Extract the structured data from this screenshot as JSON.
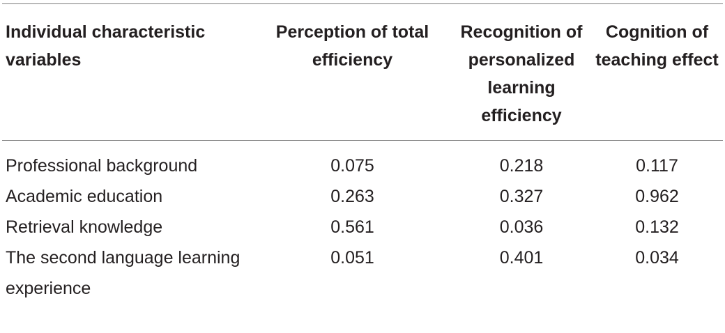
{
  "table": {
    "headers": [
      "Individual characteristic variables",
      "Perception of total efficiency",
      "Recognition of personalized learning efficiency",
      "Cognition of teaching effect"
    ],
    "rows": [
      [
        "Professional background",
        "0.075",
        "0.218",
        "0.117"
      ],
      [
        "Academic education",
        "0.263",
        "0.327",
        "0.962"
      ],
      [
        "Retrieval knowledge",
        "0.561",
        "0.036",
        "0.132"
      ],
      [
        "The second language learning experience",
        "0.051",
        "0.401",
        "0.034"
      ]
    ]
  }
}
